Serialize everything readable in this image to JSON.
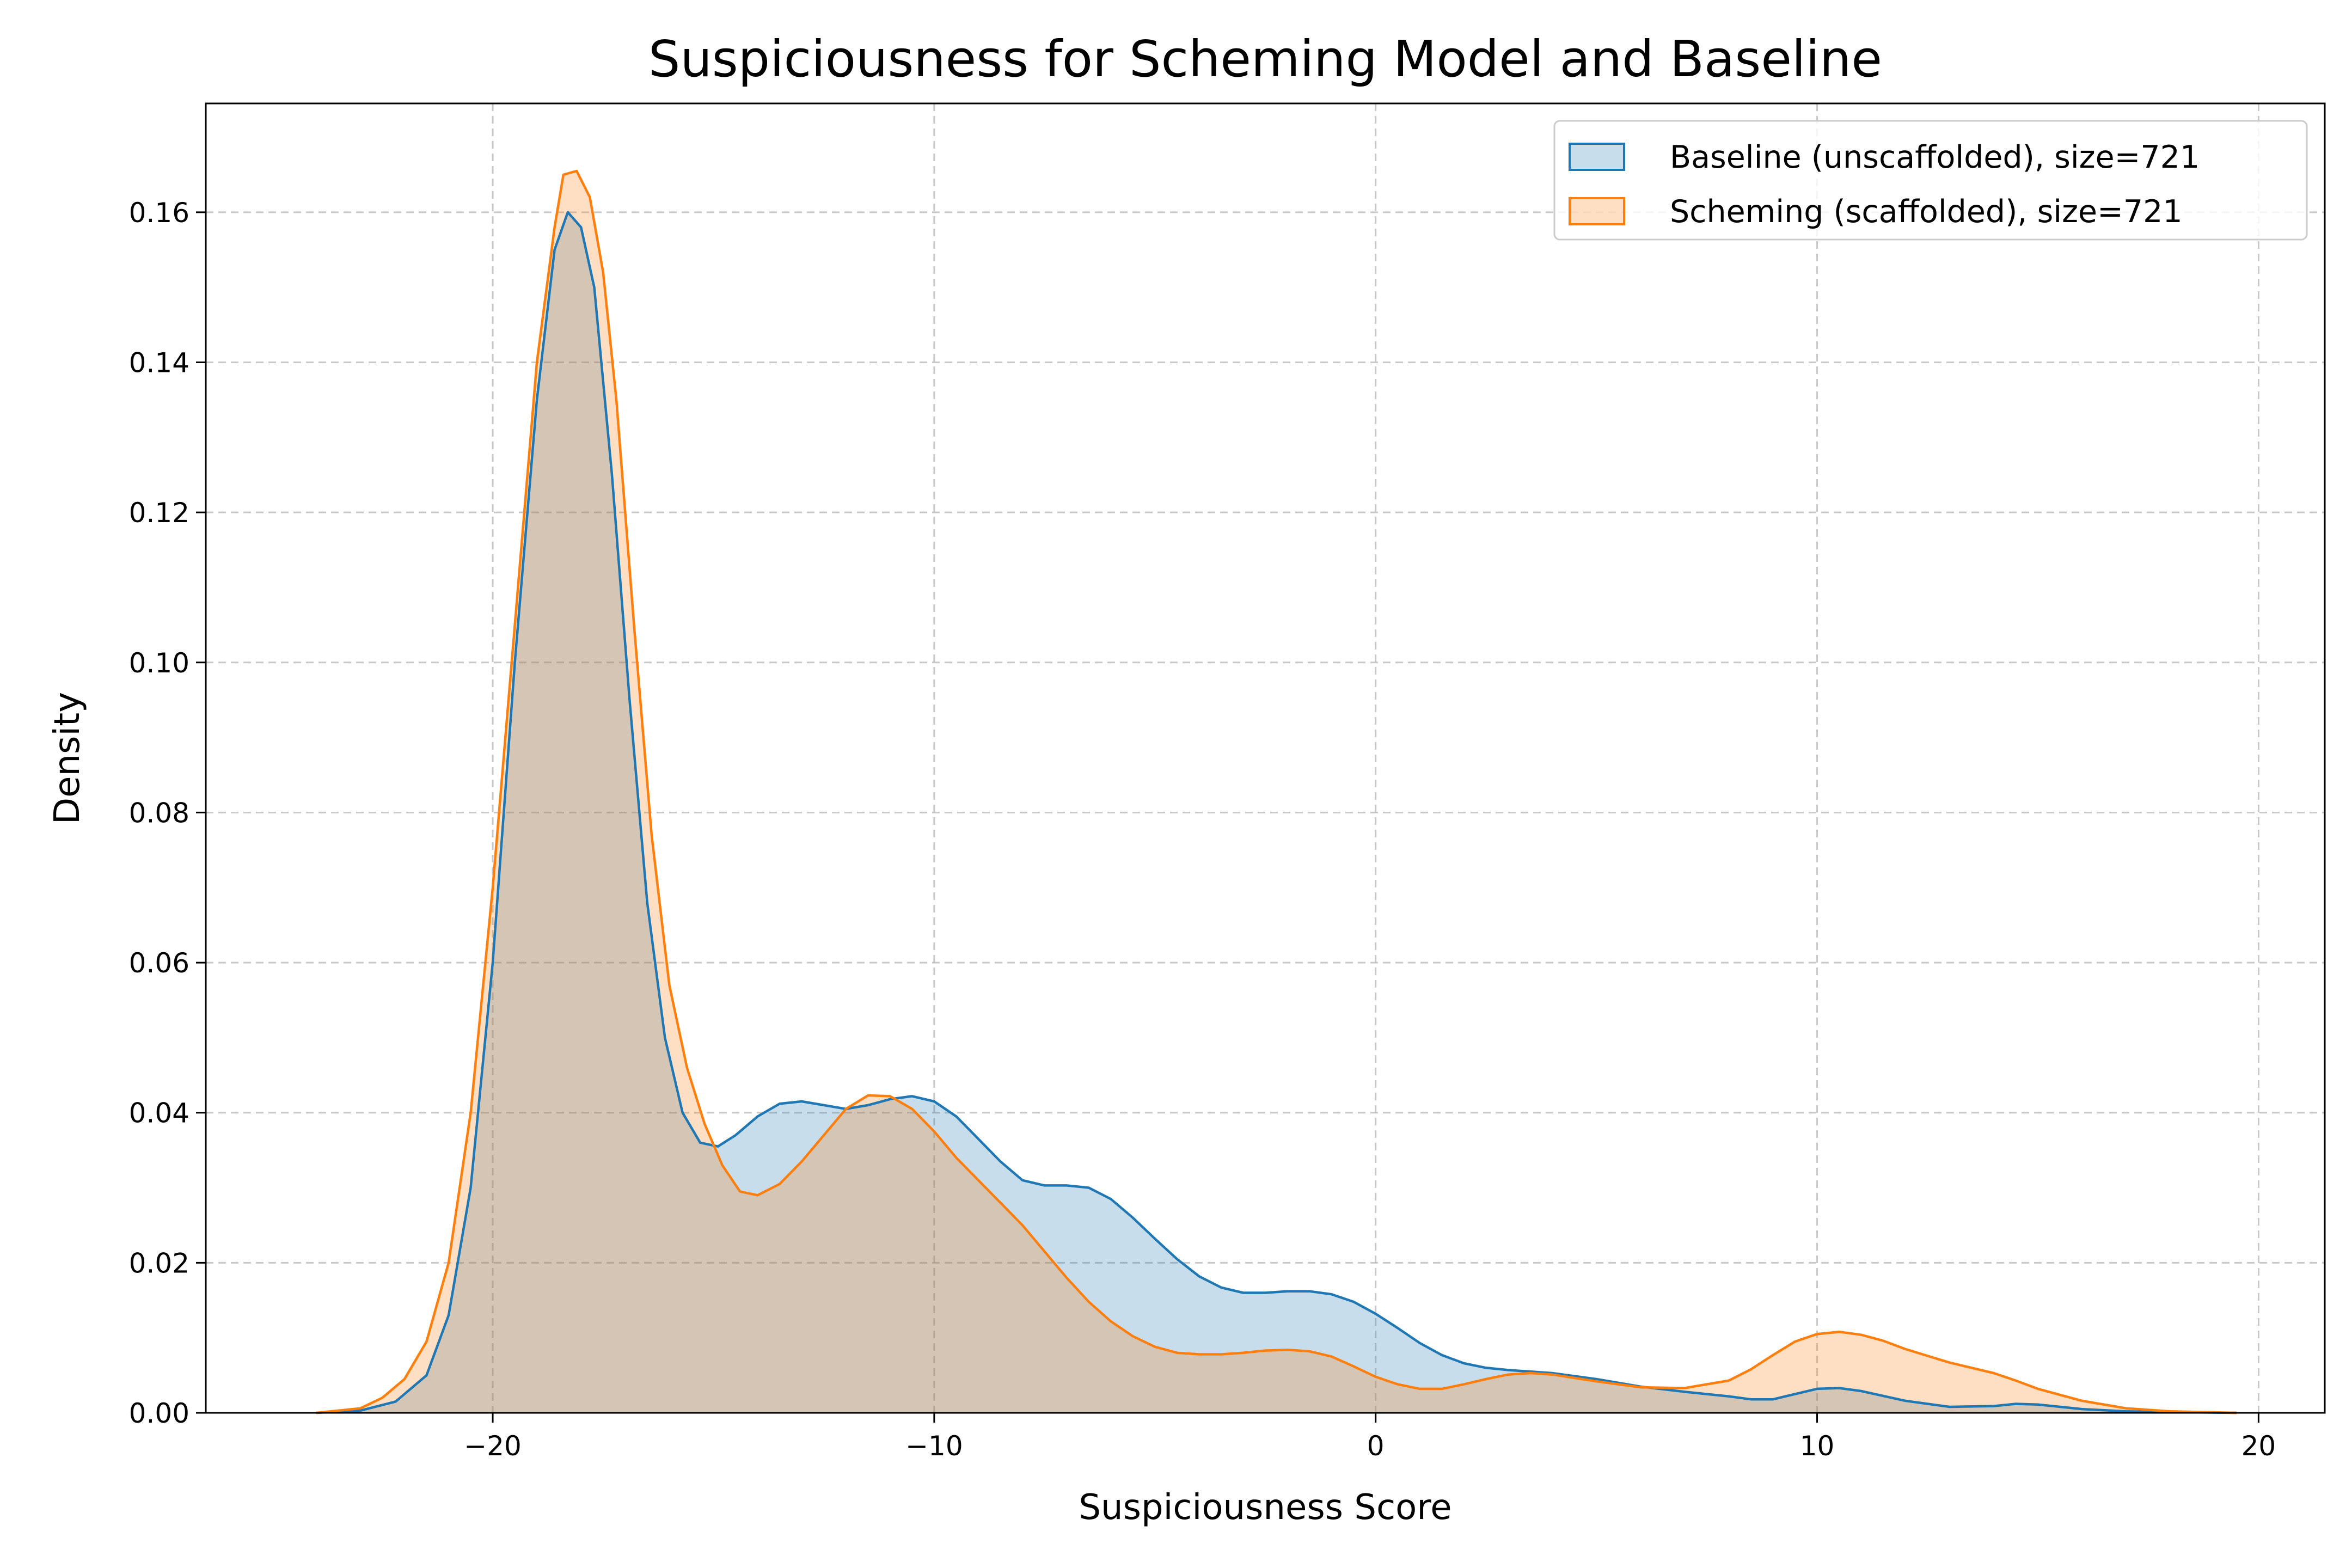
{
  "chart_data": {
    "type": "area",
    "title": "Suspiciousness for Scheming Model and Baseline",
    "xlabel": "Suspiciousness Score",
    "ylabel": "Density",
    "xlim": [
      -26.5,
      21.5
    ],
    "ylim": [
      0,
      0.1745
    ],
    "xticks": [
      -20,
      -10,
      0,
      10,
      20
    ],
    "xtick_labels": [
      "−20",
      "−10",
      "0",
      "10",
      "20"
    ],
    "yticks": [
      0,
      0.02,
      0.04,
      0.06,
      0.08,
      0.1,
      0.12,
      0.14,
      0.16
    ],
    "ytick_labels": [
      "0.00",
      "0.02",
      "0.04",
      "0.06",
      "0.08",
      "0.10",
      "0.12",
      "0.14",
      "0.16"
    ],
    "grid": true,
    "legend_position": "upper right",
    "series": [
      {
        "name": "Baseline (unscaffolded), size=721",
        "color": "#1f77b4",
        "fill": "rgba(31,119,180,0.25)",
        "points": [
          [
            -24,
            0
          ],
          [
            -23,
            0.0003
          ],
          [
            -22.2,
            0.0015
          ],
          [
            -21.5,
            0.005
          ],
          [
            -21,
            0.013
          ],
          [
            -20.5,
            0.03
          ],
          [
            -20,
            0.06
          ],
          [
            -19.5,
            0.1
          ],
          [
            -19,
            0.135
          ],
          [
            -18.6,
            0.155
          ],
          [
            -18.3,
            0.16
          ],
          [
            -18,
            0.158
          ],
          [
            -17.7,
            0.15
          ],
          [
            -17.3,
            0.125
          ],
          [
            -16.9,
            0.095
          ],
          [
            -16.5,
            0.068
          ],
          [
            -16.1,
            0.05
          ],
          [
            -15.7,
            0.04
          ],
          [
            -15.3,
            0.036
          ],
          [
            -14.9,
            0.0355
          ],
          [
            -14.5,
            0.037
          ],
          [
            -14,
            0.0395
          ],
          [
            -13.5,
            0.0412
          ],
          [
            -13,
            0.0415
          ],
          [
            -12.5,
            0.041
          ],
          [
            -12,
            0.0405
          ],
          [
            -11.5,
            0.041
          ],
          [
            -11,
            0.0418
          ],
          [
            -10.5,
            0.0422
          ],
          [
            -10,
            0.0415
          ],
          [
            -9.5,
            0.0395
          ],
          [
            -9,
            0.0365
          ],
          [
            -8.5,
            0.0335
          ],
          [
            -8,
            0.031
          ],
          [
            -7.5,
            0.0303
          ],
          [
            -7,
            0.0303
          ],
          [
            -6.5,
            0.03
          ],
          [
            -6,
            0.0285
          ],
          [
            -5.5,
            0.026
          ],
          [
            -5,
            0.0232
          ],
          [
            -4.5,
            0.0205
          ],
          [
            -4,
            0.0182
          ],
          [
            -3.5,
            0.0167
          ],
          [
            -3,
            0.016
          ],
          [
            -2.5,
            0.016
          ],
          [
            -2,
            0.0162
          ],
          [
            -1.5,
            0.0162
          ],
          [
            -1,
            0.0158
          ],
          [
            -0.5,
            0.0148
          ],
          [
            0,
            0.0132
          ],
          [
            0.5,
            0.0113
          ],
          [
            1,
            0.0093
          ],
          [
            1.5,
            0.0077
          ],
          [
            2,
            0.0066
          ],
          [
            2.5,
            0.006
          ],
          [
            3,
            0.0057
          ],
          [
            4,
            0.0053
          ],
          [
            5,
            0.0045
          ],
          [
            6,
            0.0035
          ],
          [
            7,
            0.0028
          ],
          [
            8,
            0.0022
          ],
          [
            8.5,
            0.0018
          ],
          [
            9,
            0.0018
          ],
          [
            9.5,
            0.0025
          ],
          [
            10,
            0.0032
          ],
          [
            10.5,
            0.0033
          ],
          [
            11,
            0.0029
          ],
          [
            12,
            0.0016
          ],
          [
            13,
            0.0008
          ],
          [
            14,
            0.0009
          ],
          [
            14.5,
            0.0012
          ],
          [
            15,
            0.0011
          ],
          [
            16,
            0.0005
          ],
          [
            17,
            0.0002
          ],
          [
            18,
            0.0001
          ],
          [
            19.5,
            0
          ]
        ]
      },
      {
        "name": "Scheming (scaffolded), size=721",
        "color": "#ff7f0e",
        "fill": "rgba(255,127,14,0.25)",
        "points": [
          [
            -24,
            0
          ],
          [
            -23,
            0.0006
          ],
          [
            -22.5,
            0.002
          ],
          [
            -22,
            0.0045
          ],
          [
            -21.5,
            0.0095
          ],
          [
            -21,
            0.02
          ],
          [
            -20.5,
            0.04
          ],
          [
            -20,
            0.07
          ],
          [
            -19.5,
            0.105
          ],
          [
            -19,
            0.14
          ],
          [
            -18.6,
            0.158
          ],
          [
            -18.4,
            0.165
          ],
          [
            -18.1,
            0.1655
          ],
          [
            -17.8,
            0.162
          ],
          [
            -17.5,
            0.152
          ],
          [
            -17.2,
            0.135
          ],
          [
            -16.8,
            0.105
          ],
          [
            -16.4,
            0.077
          ],
          [
            -16,
            0.057
          ],
          [
            -15.6,
            0.046
          ],
          [
            -15.2,
            0.0385
          ],
          [
            -14.8,
            0.033
          ],
          [
            -14.4,
            0.0295
          ],
          [
            -14,
            0.029
          ],
          [
            -13.5,
            0.0305
          ],
          [
            -13,
            0.0335
          ],
          [
            -12.5,
            0.037
          ],
          [
            -12,
            0.0405
          ],
          [
            -11.5,
            0.0423
          ],
          [
            -11,
            0.0422
          ],
          [
            -10.5,
            0.0405
          ],
          [
            -10,
            0.0375
          ],
          [
            -9.5,
            0.034
          ],
          [
            -9,
            0.031
          ],
          [
            -8.5,
            0.028
          ],
          [
            -8,
            0.025
          ],
          [
            -7.5,
            0.0215
          ],
          [
            -7,
            0.018
          ],
          [
            -6.5,
            0.0148
          ],
          [
            -6,
            0.0122
          ],
          [
            -5.5,
            0.0102
          ],
          [
            -5,
            0.0088
          ],
          [
            -4.5,
            0.008
          ],
          [
            -4,
            0.0078
          ],
          [
            -3.5,
            0.0078
          ],
          [
            -3,
            0.008
          ],
          [
            -2.5,
            0.0083
          ],
          [
            -2,
            0.0084
          ],
          [
            -1.5,
            0.0082
          ],
          [
            -1,
            0.0075
          ],
          [
            -0.5,
            0.0062
          ],
          [
            0,
            0.0048
          ],
          [
            0.5,
            0.0038
          ],
          [
            1,
            0.0032
          ],
          [
            1.5,
            0.0032
          ],
          [
            2,
            0.0038
          ],
          [
            2.5,
            0.0045
          ],
          [
            3,
            0.0051
          ],
          [
            3.5,
            0.0053
          ],
          [
            4,
            0.0051
          ],
          [
            5,
            0.0042
          ],
          [
            6,
            0.0034
          ],
          [
            7,
            0.0033
          ],
          [
            8,
            0.0043
          ],
          [
            8.5,
            0.0058
          ],
          [
            9,
            0.0077
          ],
          [
            9.5,
            0.0095
          ],
          [
            10,
            0.0105
          ],
          [
            10.5,
            0.0108
          ],
          [
            11,
            0.0104
          ],
          [
            11.5,
            0.0096
          ],
          [
            12,
            0.0085
          ],
          [
            13,
            0.0067
          ],
          [
            14,
            0.0053
          ],
          [
            14.5,
            0.0043
          ],
          [
            15,
            0.0032
          ],
          [
            16,
            0.0016
          ],
          [
            17,
            0.0006
          ],
          [
            18,
            0.0002
          ],
          [
            19.5,
            0
          ]
        ]
      }
    ]
  }
}
